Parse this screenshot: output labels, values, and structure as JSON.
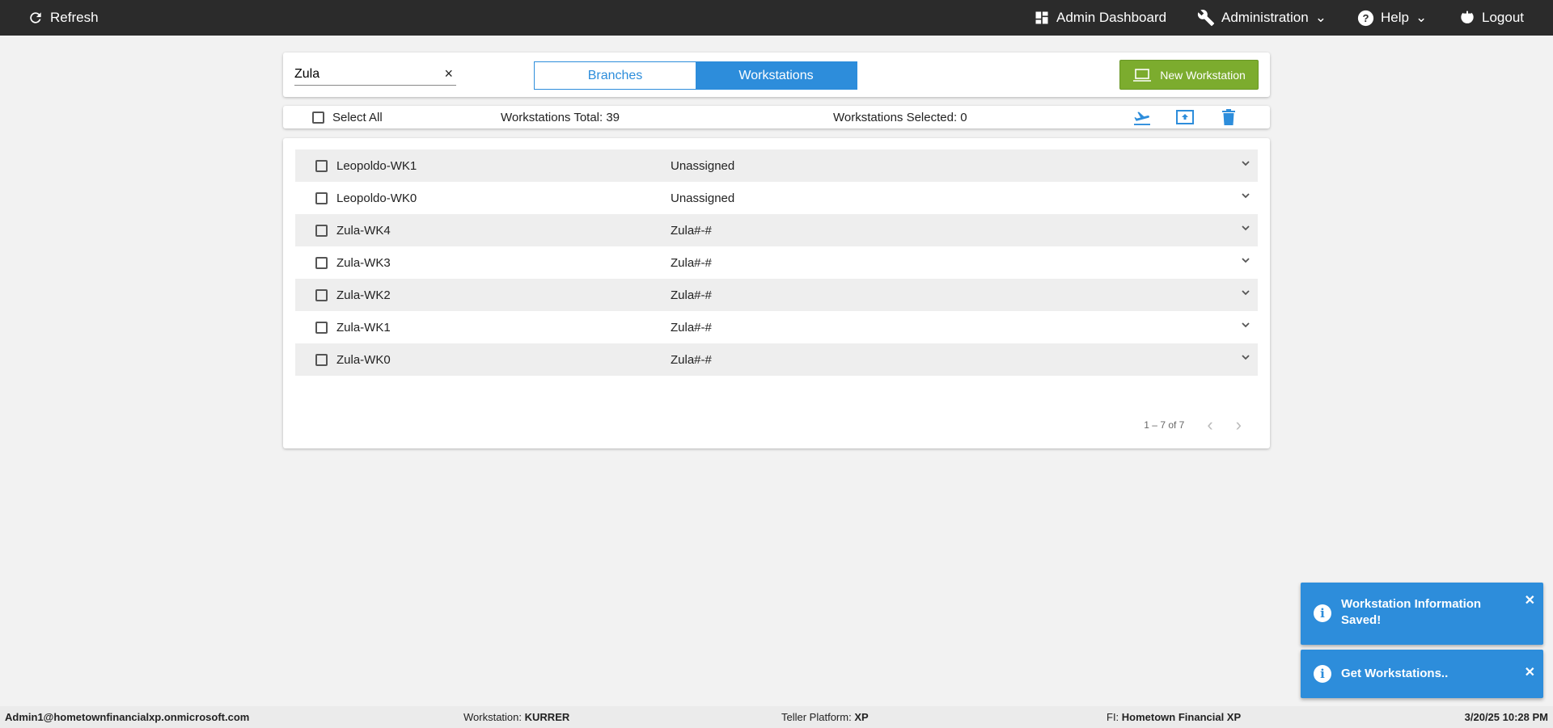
{
  "topbar": {
    "refresh": "Refresh",
    "admin_dashboard": "Admin Dashboard",
    "administration": "Administration",
    "help": "Help",
    "logout": "Logout"
  },
  "search": {
    "value": "Zula"
  },
  "tabs": [
    {
      "label": "Branches",
      "active": false
    },
    {
      "label": "Workstations",
      "active": true
    }
  ],
  "new_button": "New Workstation",
  "toolbar": {
    "select_all": "Select All",
    "total": "Workstations Total: 39",
    "selected": "Workstations Selected: 0"
  },
  "rows": [
    {
      "name": "Leopoldo-WK1",
      "branch": "Unassigned"
    },
    {
      "name": "Leopoldo-WK0",
      "branch": "Unassigned"
    },
    {
      "name": "Zula-WK4",
      "branch": "Zula#-#"
    },
    {
      "name": "Zula-WK3",
      "branch": "Zula#-#"
    },
    {
      "name": "Zula-WK2",
      "branch": "Zula#-#"
    },
    {
      "name": "Zula-WK1",
      "branch": "Zula#-#"
    },
    {
      "name": "Zula-WK0",
      "branch": "Zula#-#"
    }
  ],
  "pager": {
    "range": "1 – 7 of 7"
  },
  "toasts": [
    {
      "message": "Workstation Information Saved!"
    },
    {
      "message": "Get Workstations.."
    }
  ],
  "status": {
    "user": "Admin1@hometownfinancialxp.onmicrosoft.com",
    "workstation_label": "Workstation:",
    "workstation": "KURRER",
    "platform_label": "Teller Platform:",
    "platform": "XP",
    "fi_label": "FI:",
    "fi": "Hometown Financial XP",
    "datetime": "3/20/25 10:28 PM"
  },
  "colors": {
    "accent": "#2d8ddb",
    "new_button": "#7cac2e",
    "topbar": "#2b2b2b"
  }
}
